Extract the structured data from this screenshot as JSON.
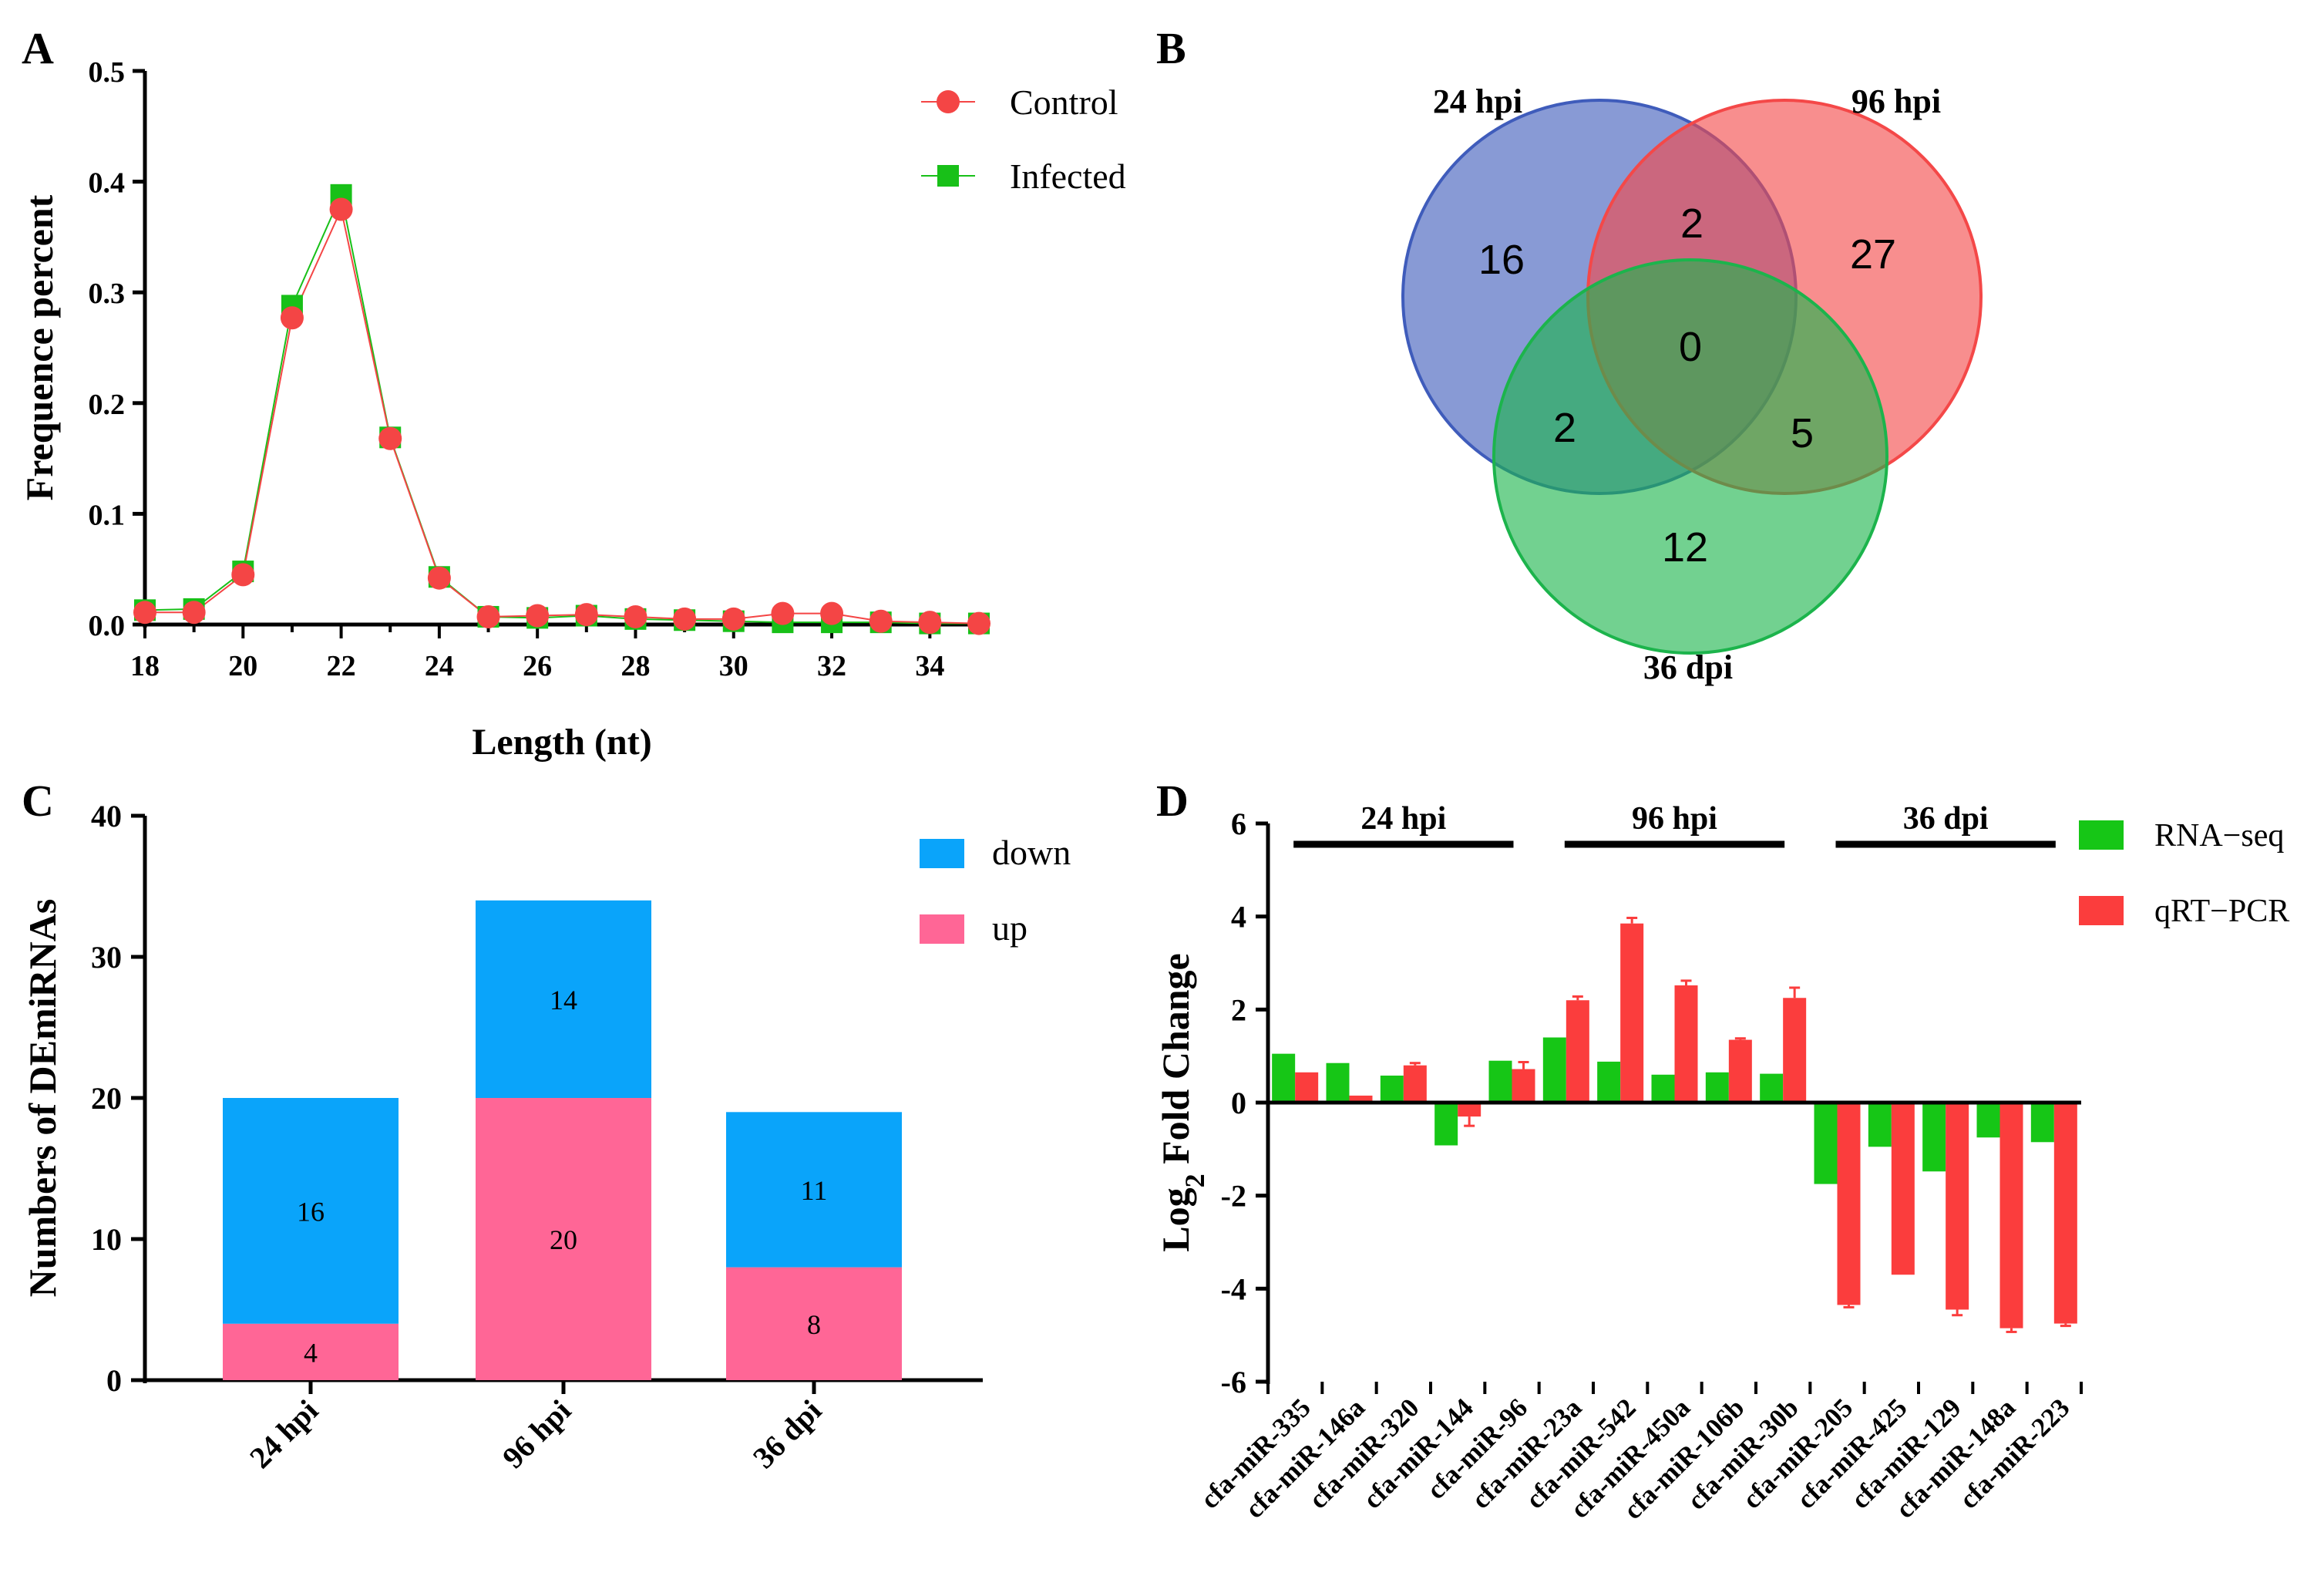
{
  "panel_labels": {
    "A": "A",
    "B": "B",
    "C": "C",
    "D": "D"
  },
  "colors": {
    "control": "#f44545",
    "infected": "#18c018",
    "down": "#0aa4fa",
    "up": "#ff6696",
    "rnaseq": "#16c616",
    "qrtpcr": "#fb3d3d",
    "venn_24hpi": "#3f5cbb",
    "venn_96hpi": "#f44848",
    "venn_36dpi": "#1cb44c"
  },
  "chart_data": [
    {
      "id": "A",
      "type": "line",
      "title": "",
      "xlabel": "Length (nt)",
      "ylabel": "Frequence percent",
      "xlim": [
        18,
        35
      ],
      "ylim": [
        0,
        0.5
      ],
      "xticks": [
        18,
        20,
        22,
        24,
        26,
        28,
        30,
        32,
        34
      ],
      "yticks": [
        0.0,
        0.1,
        0.2,
        0.3,
        0.4,
        0.5
      ],
      "ytick_labels": [
        "0.0",
        "0.1",
        "0.2",
        "0.3",
        "0.4",
        "0.5"
      ],
      "legend_position": "top-right",
      "x": [
        18,
        19,
        20,
        21,
        22,
        23,
        24,
        25,
        26,
        27,
        28,
        29,
        30,
        31,
        32,
        33,
        34,
        35
      ],
      "series": [
        {
          "name": "Control",
          "marker": "circle",
          "values": [
            0.011,
            0.011,
            0.045,
            0.277,
            0.375,
            0.168,
            0.042,
            0.007,
            0.008,
            0.009,
            0.007,
            0.005,
            0.005,
            0.01,
            0.01,
            0.003,
            0.002,
            0.001
          ]
        },
        {
          "name": "Infected",
          "marker": "square",
          "values": [
            0.013,
            0.014,
            0.048,
            0.288,
            0.388,
            0.169,
            0.043,
            0.007,
            0.006,
            0.008,
            0.005,
            0.004,
            0.003,
            0.002,
            0.002,
            0.002,
            0.001,
            0.001
          ]
        }
      ]
    },
    {
      "id": "B",
      "type": "venn",
      "sets": [
        "24 hpi",
        "96 hpi",
        "36 dpi"
      ],
      "regions": {
        "only_24hpi": "16",
        "only_96hpi": "27",
        "only_36dpi": "12",
        "24hpi_96hpi": "2",
        "24hpi_36dpi": "2",
        "96hpi_36dpi": "5",
        "all_three": "0"
      }
    },
    {
      "id": "C",
      "type": "bar",
      "stacked": true,
      "xlabel": "",
      "ylabel": "Numbers of DEmiRNAs",
      "ylim": [
        0,
        40
      ],
      "yticks": [
        0,
        10,
        20,
        30,
        40
      ],
      "categories": [
        "24 hpi",
        "96 hpi",
        "36 dpi"
      ],
      "legend_position": "top-right",
      "series": [
        {
          "name": "up",
          "values": [
            4,
            20,
            8
          ]
        },
        {
          "name": "down",
          "values": [
            16,
            14,
            11
          ]
        }
      ],
      "legend_order": [
        "down",
        "up"
      ]
    },
    {
      "id": "D",
      "type": "bar",
      "xlabel": "",
      "ylabel_main": "Log",
      "ylabel_sub": "2",
      "ylabel_rest": " Fold Change",
      "ylim": [
        -6,
        6
      ],
      "yticks": [
        -6,
        -4,
        -2,
        0,
        2,
        4,
        6
      ],
      "categories": [
        "cfa-miR-335",
        "cfa-miR-146a",
        "cfa-miR-320",
        "cfa-miR-144",
        "cfa-miR-96",
        "cfa-miR-23a",
        "cfa-miR-542",
        "cfa-miR-450a",
        "cfa-miR-106b",
        "cfa-miR-30b",
        "cfa-miR-205",
        "cfa-miR-425",
        "cfa-miR-129",
        "cfa-miR-148a",
        "cfa-miR-223"
      ],
      "groups": [
        {
          "label": "24 hpi",
          "from": 0,
          "to": 4
        },
        {
          "label": "96 hpi",
          "from": 5,
          "to": 9
        },
        {
          "label": "36 dpi",
          "from": 10,
          "to": 14
        }
      ],
      "legend_position": "top-right",
      "series": [
        {
          "name": "RNA−seq",
          "values": [
            1.05,
            0.85,
            0.58,
            -0.92,
            0.9,
            1.4,
            0.88,
            0.6,
            0.65,
            0.62,
            -1.75,
            -0.95,
            -1.48,
            -0.75,
            -0.85
          ]
        },
        {
          "name": "qRT−PCR",
          "values": [
            0.65,
            0.15,
            0.8,
            -0.3,
            0.72,
            2.2,
            3.85,
            2.52,
            1.35,
            2.25,
            -4.35,
            -3.7,
            -4.45,
            -4.85,
            -4.75
          ],
          "errors": [
            0.0,
            0.0,
            0.05,
            0.2,
            0.15,
            0.08,
            0.12,
            0.1,
            0.03,
            0.22,
            0.05,
            0.0,
            0.12,
            0.08,
            0.05
          ]
        }
      ]
    }
  ]
}
